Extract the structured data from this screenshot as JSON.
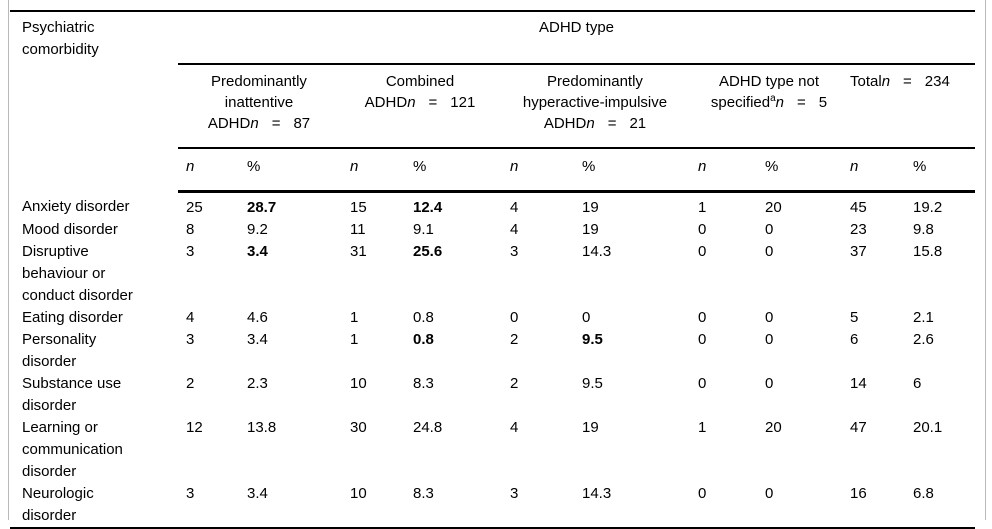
{
  "table": {
    "stub_header": "Psychiatric comorbidity",
    "span_header": "ADHD type",
    "groups": [
      {
        "lines": [
          "Predominantly",
          "inattentive"
        ],
        "count_prefix": "ADHD",
        "sup": "",
        "n_label": "n",
        "eq": "=",
        "count": "87"
      },
      {
        "lines": [
          "Combined"
        ],
        "count_prefix": "ADHD",
        "sup": "",
        "n_label": "n",
        "eq": "=",
        "count": "121"
      },
      {
        "lines": [
          "Predominantly",
          "hyperactive-impulsive"
        ],
        "count_prefix": "ADHD",
        "sup": "",
        "n_label": "n",
        "eq": "=",
        "count": "21"
      },
      {
        "lines": [
          "ADHD type not"
        ],
        "count_prefix": "specified",
        "sup": "a",
        "n_label": "n",
        "eq": "=",
        "count": "5"
      },
      {
        "lines": [],
        "count_prefix": "Total",
        "sup": "",
        "n_label": "n",
        "eq": "=",
        "count": "234"
      }
    ],
    "subheaders": {
      "n": "n",
      "pct": "%"
    },
    "rows": [
      {
        "label": "Anxiety disorder",
        "values": [
          "25",
          "28.7",
          "15",
          "12.4",
          "4",
          "19",
          "1",
          "20",
          "45",
          "19.2"
        ],
        "bold": [
          1,
          3
        ]
      },
      {
        "label": "Mood disorder",
        "values": [
          "8",
          "9.2",
          "11",
          "9.1",
          "4",
          "19",
          "0",
          "0",
          "23",
          "9.8"
        ],
        "bold": []
      },
      {
        "label": "Disruptive behaviour or conduct disorder",
        "values": [
          "3",
          "3.4",
          "31",
          "25.6",
          "3",
          "14.3",
          "0",
          "0",
          "37",
          "15.8"
        ],
        "bold": [
          1,
          3
        ]
      },
      {
        "label": "Eating disorder",
        "values": [
          "4",
          "4.6",
          "1",
          "0.8",
          "0",
          "0",
          "0",
          "0",
          "5",
          "2.1"
        ],
        "bold": []
      },
      {
        "label": "Personality disorder",
        "values": [
          "3",
          "3.4",
          "1",
          "0.8",
          "2",
          "9.5",
          "0",
          "0",
          "6",
          "2.6"
        ],
        "bold": [
          3,
          5
        ]
      },
      {
        "label": "Substance use disorder",
        "values": [
          "2",
          "2.3",
          "10",
          "8.3",
          "2",
          "9.5",
          "0",
          "0",
          "14",
          "6"
        ],
        "bold": []
      },
      {
        "label": "Learning or communication disorder",
        "values": [
          "12",
          "13.8",
          "30",
          "24.8",
          "4",
          "19",
          "1",
          "20",
          "47",
          "20.1"
        ],
        "bold": []
      },
      {
        "label": "Neurologic disorder",
        "values": [
          "3",
          "3.4",
          "10",
          "8.3",
          "3",
          "14.3",
          "0",
          "0",
          "16",
          "6.8"
        ],
        "bold": []
      }
    ]
  },
  "colors": {
    "rule": "#000000",
    "frame_edge": "#b9b9b9",
    "background": "#ffffff"
  }
}
